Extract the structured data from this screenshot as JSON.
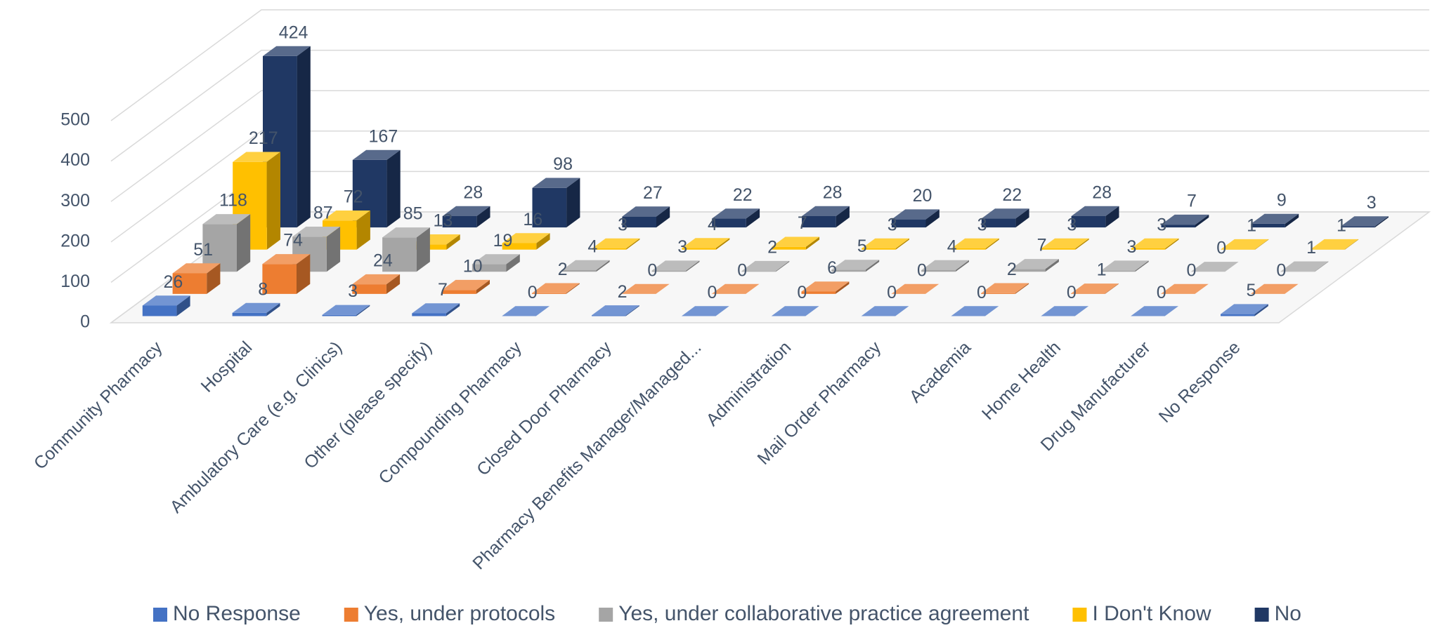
{
  "chart_data": {
    "type": "bar",
    "categories": [
      "Community Pharmacy",
      "Hospital",
      "Ambulatory Care (e.g. Clinics)",
      "Other (please specify)",
      "Compounding Pharmacy",
      "Closed Door Pharmacy",
      "Pharmacy Benefits Manager/Managed...",
      "Administration",
      "Mail Order Pharmacy",
      "Academia",
      "Home Health",
      "Drug Manufacturer",
      "No Response"
    ],
    "series": [
      {
        "name": "No Response",
        "color": "#4472c4",
        "values": [
          26,
          8,
          3,
          7,
          0,
          2,
          0,
          0,
          0,
          0,
          0,
          0,
          5
        ]
      },
      {
        "name": "Yes, under protocols",
        "color": "#ed7d31",
        "values": [
          51,
          74,
          24,
          10,
          2,
          0,
          0,
          6,
          0,
          2,
          1,
          0,
          0
        ]
      },
      {
        "name": "Yes, under collaborative practice agreement",
        "color": "#a5a5a5",
        "values": [
          118,
          87,
          85,
          19,
          4,
          3,
          2,
          5,
          4,
          7,
          3,
          0,
          1
        ]
      },
      {
        "name": "I Don't Know",
        "color": "#ffc000",
        "values": [
          217,
          72,
          13,
          16,
          3,
          4,
          7,
          3,
          3,
          3,
          3,
          1,
          1
        ]
      },
      {
        "name": "No",
        "color": "#203864",
        "values": [
          424,
          167,
          28,
          98,
          27,
          22,
          28,
          20,
          22,
          28,
          7,
          9,
          3
        ]
      }
    ],
    "ylim": [
      0,
      500
    ],
    "yticks": [
      0,
      100,
      200,
      300,
      400,
      500
    ],
    "grid": true,
    "legend": "bottom"
  }
}
